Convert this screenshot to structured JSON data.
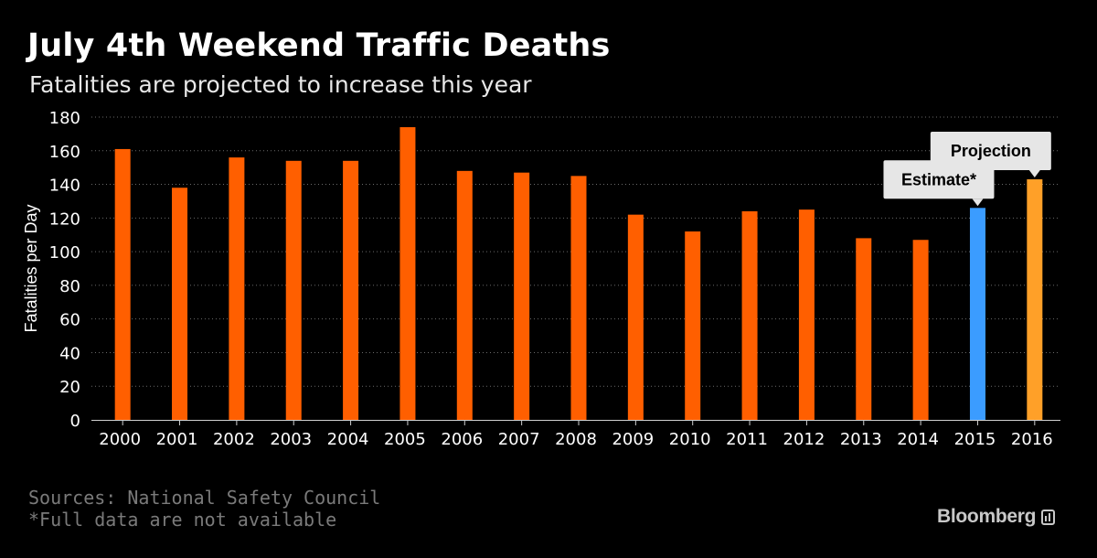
{
  "title": "July 4th Weekend Traffic Deaths",
  "subtitle": "Fatalities are projected to increase this year",
  "source": "Sources: National Safety Council",
  "note": "*Full data are not available",
  "brand": "Bloomberg",
  "colors": {
    "background": "#000000",
    "bar": "#ff5f00",
    "estimate": "#3b9cff",
    "projection": "#ffa028",
    "gridline": "#6a6a6a",
    "axis_text": "#ffffff",
    "callout_bg": "#e6e6e6",
    "callout_text": "#000000"
  },
  "chart_data": {
    "type": "bar",
    "title": "July 4th Weekend Traffic Deaths",
    "subtitle": "Fatalities are projected to increase this year",
    "xlabel": "",
    "ylabel": "Fatalities per Day",
    "ylim": [
      0,
      180
    ],
    "yticks": [
      0,
      20,
      40,
      60,
      80,
      100,
      120,
      140,
      160,
      180
    ],
    "grid": true,
    "categories": [
      "2000",
      "2001",
      "2002",
      "2003",
      "2004",
      "2005",
      "2006",
      "2007",
      "2008",
      "2009",
      "2010",
      "2011",
      "2012",
      "2013",
      "2014",
      "2015",
      "2016"
    ],
    "values": [
      161,
      138,
      156,
      154,
      154,
      174,
      148,
      147,
      145,
      122,
      112,
      124,
      125,
      108,
      107,
      126,
      143
    ],
    "bar_kinds": [
      "actual",
      "actual",
      "actual",
      "actual",
      "actual",
      "actual",
      "actual",
      "actual",
      "actual",
      "actual",
      "actual",
      "actual",
      "actual",
      "actual",
      "actual",
      "estimate",
      "projection"
    ],
    "annotations": [
      {
        "category": "2015",
        "text": "Estimate*"
      },
      {
        "category": "2016",
        "text": "Projection"
      }
    ]
  }
}
